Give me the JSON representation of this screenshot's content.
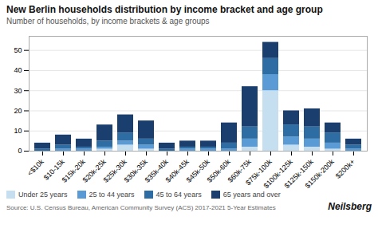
{
  "chart_data": {
    "type": "bar",
    "stacked": true,
    "title": "New Berlin households distribution by income bracket and age group",
    "subtitle": "Number of households, by income brackets & age groups",
    "annotations": [
      "Source: U.S. Census Bureau, American Community Survey (ACS) 2017-2021 5-Year Estimates",
      "Neilsberg"
    ],
    "categories": [
      "<$10k",
      "$10-15k",
      "$15k-20k",
      "$20k-25k",
      "$25k-30k",
      "$30k-35k",
      "$35k-40k",
      "$40k-45k",
      "$45k-50k",
      "$50k-60k",
      "$60k-75k",
      "$75k-100k",
      "$100k-125k",
      "$125k-150k",
      "$150k-200k",
      "$200k+"
    ],
    "series": [
      {
        "name": "Under 25 years",
        "color": "#c5dff0",
        "values": [
          0,
          0,
          0,
          1,
          3,
          1,
          0,
          0,
          0,
          0,
          2,
          30,
          3,
          2,
          1,
          0
        ]
      },
      {
        "name": "25 to 44 years",
        "color": "#5b9bd5",
        "values": [
          0,
          1,
          1,
          1,
          2,
          2,
          0,
          1,
          1,
          1,
          4,
          8,
          4,
          4,
          3,
          1
        ]
      },
      {
        "name": "45 to 64 years",
        "color": "#2e6da4",
        "values": [
          1,
          2,
          1,
          3,
          4,
          3,
          1,
          1,
          1,
          3,
          6,
          8,
          6,
          6,
          5,
          2
        ]
      },
      {
        "name": "65 years and over",
        "color": "#1a3f6f",
        "values": [
          3,
          5,
          4,
          8,
          9,
          9,
          3,
          3,
          3,
          10,
          20,
          8,
          7,
          9,
          5,
          3
        ]
      }
    ],
    "ylim": [
      0,
      57
    ],
    "yticks": [
      0,
      10,
      20,
      30,
      40,
      50
    ],
    "grid": true,
    "legend": "bottom"
  }
}
